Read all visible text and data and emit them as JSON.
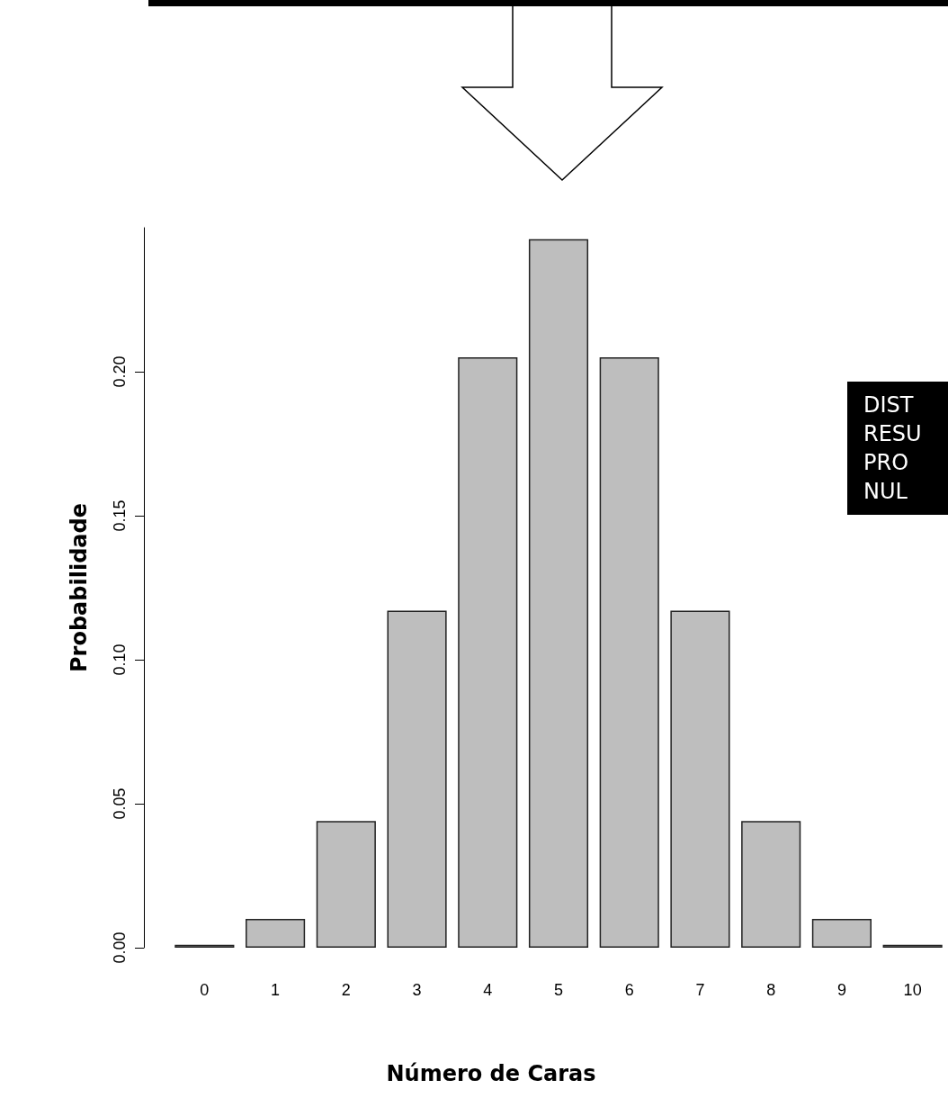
{
  "chart_data": {
    "type": "bar",
    "xlabel": "Número de Caras",
    "ylabel": "Probabilidade",
    "categories": [
      "0",
      "1",
      "2",
      "3",
      "4",
      "5",
      "6",
      "7",
      "8",
      "9",
      "10"
    ],
    "values": [
      0.001,
      0.01,
      0.044,
      0.117,
      0.205,
      0.246,
      0.205,
      0.117,
      0.044,
      0.01,
      0.001
    ],
    "color": "#bebebe",
    "ylim": [
      0,
      0.25
    ],
    "yticks": [
      {
        "value": 0,
        "label": "0.00"
      },
      {
        "value": 0.05,
        "label": "0.05"
      },
      {
        "value": 0.1,
        "label": "0.10"
      },
      {
        "value": 0.15,
        "label": "0.15"
      },
      {
        "value": 0.2,
        "label": "0.20"
      }
    ],
    "grid": false,
    "annotations": [
      "DIST\nRESU\nPRO\nNUL"
    ]
  }
}
